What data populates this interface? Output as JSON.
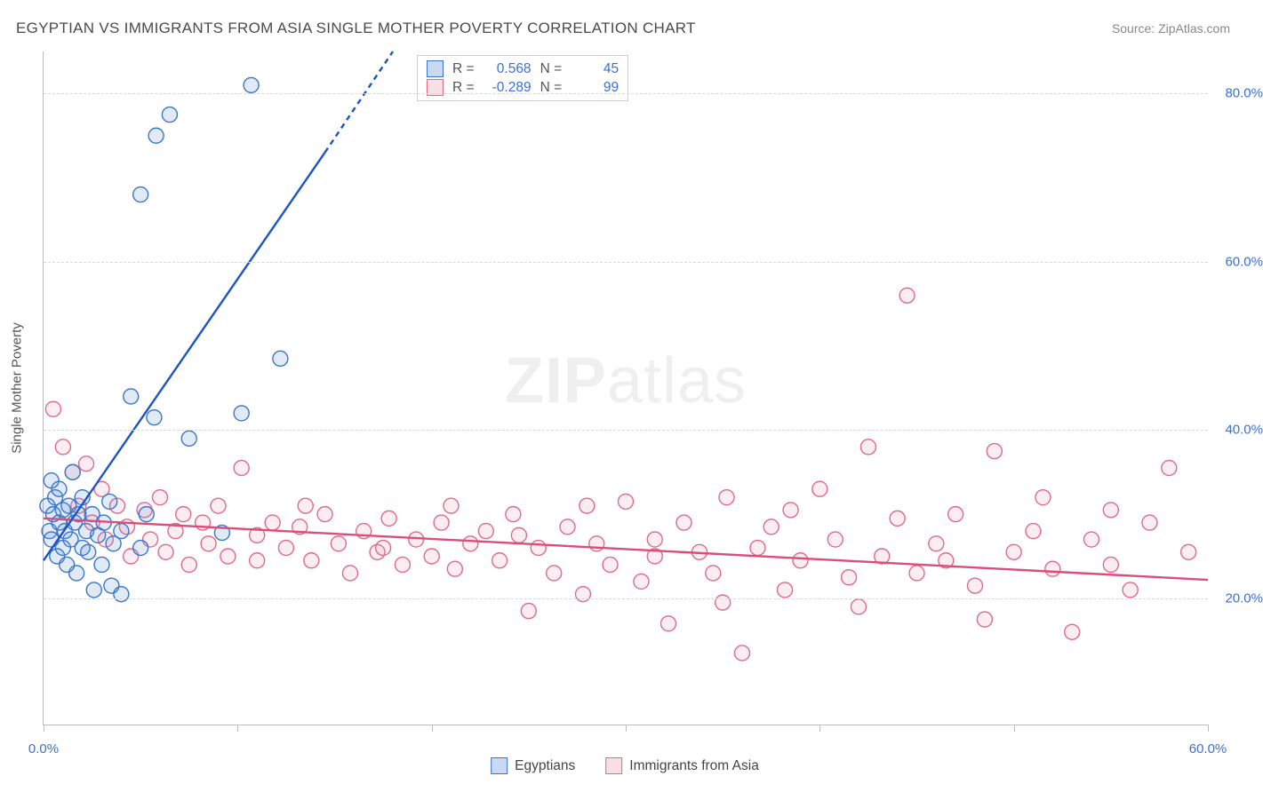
{
  "title": "EGYPTIAN VS IMMIGRANTS FROM ASIA SINGLE MOTHER POVERTY CORRELATION CHART",
  "source": "Source: ZipAtlas.com",
  "y_axis_title": "Single Mother Poverty",
  "watermark": "ZIPatlas",
  "chart": {
    "type": "scatter",
    "background_color": "#ffffff",
    "grid_color": "#d8d8d8",
    "axis_color": "#bcbcbc",
    "tick_label_color": "#3b6fd6",
    "x_range": [
      0,
      60
    ],
    "y_range": [
      5,
      85
    ],
    "x_ticks": [
      0,
      10,
      20,
      30,
      40,
      50,
      60
    ],
    "x_tick_labels": {
      "0": "0.0%",
      "60": "60.0%"
    },
    "y_ticks": [
      20,
      40,
      60,
      80
    ],
    "y_tick_labels": {
      "20": "20.0%",
      "40": "40.0%",
      "60": "60.0%",
      "80": "80.0%"
    },
    "marker_radius": 8.5,
    "marker_stroke_width": 1.4,
    "fill_opacity": 0.18,
    "trend_line_width": 2.4
  },
  "series": {
    "egyptians": {
      "label": "Egyptians",
      "color": "#5a8fd8",
      "stroke": "#3b76c9",
      "line_color": "#1b54c4",
      "R": "0.568",
      "N": "45",
      "trend": {
        "x1": 0,
        "y1": 24.5,
        "x2": 18,
        "y2": 85
      },
      "trend_dashed_ext": {
        "x1": 14.5,
        "y1": 73,
        "x2": 18,
        "y2": 85
      },
      "points": [
        [
          0.2,
          31
        ],
        [
          0.3,
          28
        ],
        [
          0.4,
          34
        ],
        [
          0.4,
          27
        ],
        [
          0.5,
          30
        ],
        [
          0.6,
          32
        ],
        [
          0.7,
          25
        ],
        [
          0.8,
          29
        ],
        [
          0.8,
          33
        ],
        [
          1.0,
          26
        ],
        [
          1.0,
          30.5
        ],
        [
          1.1,
          28
        ],
        [
          1.2,
          24
        ],
        [
          1.3,
          31
        ],
        [
          1.4,
          27
        ],
        [
          1.5,
          35
        ],
        [
          1.6,
          29
        ],
        [
          1.7,
          23
        ],
        [
          1.8,
          30
        ],
        [
          2.0,
          26
        ],
        [
          2.0,
          32
        ],
        [
          2.2,
          28
        ],
        [
          2.3,
          25.5
        ],
        [
          2.5,
          30
        ],
        [
          2.6,
          21
        ],
        [
          2.8,
          27.5
        ],
        [
          3.0,
          24
        ],
        [
          3.1,
          29
        ],
        [
          3.4,
          31.5
        ],
        [
          3.5,
          21.5
        ],
        [
          3.6,
          26.5
        ],
        [
          4.0,
          28
        ],
        [
          4.0,
          20.5
        ],
        [
          4.5,
          44
        ],
        [
          5.0,
          26
        ],
        [
          5.3,
          30
        ],
        [
          5.7,
          41.5
        ],
        [
          5.0,
          68
        ],
        [
          5.8,
          75
        ],
        [
          6.5,
          77.5
        ],
        [
          7.5,
          39
        ],
        [
          10.2,
          42
        ],
        [
          10.7,
          81
        ],
        [
          12.2,
          48.5
        ],
        [
          9.2,
          27.8
        ]
      ]
    },
    "immigrants": {
      "label": "Immigrants from Asia",
      "color": "#eb9bb0",
      "stroke": "#e06a8a",
      "line_color": "#d94f7a",
      "R": "-0.289",
      "N": "99",
      "trend": {
        "x1": 0,
        "y1": 29.5,
        "x2": 60,
        "y2": 22.2
      },
      "points": [
        [
          0.5,
          42.5
        ],
        [
          1.0,
          38
        ],
        [
          1.5,
          35
        ],
        [
          1.8,
          31
        ],
        [
          2.2,
          36
        ],
        [
          2.5,
          29
        ],
        [
          3.0,
          33
        ],
        [
          3.2,
          27
        ],
        [
          3.8,
          31
        ],
        [
          4.3,
          28.5
        ],
        [
          4.5,
          25
        ],
        [
          5.2,
          30.5
        ],
        [
          5.5,
          27
        ],
        [
          6.0,
          32
        ],
        [
          6.3,
          25.5
        ],
        [
          6.8,
          28
        ],
        [
          7.2,
          30
        ],
        [
          7.5,
          24
        ],
        [
          8.2,
          29
        ],
        [
          8.5,
          26.5
        ],
        [
          9.0,
          31
        ],
        [
          9.5,
          25
        ],
        [
          10.2,
          35.5
        ],
        [
          11.0,
          27.5
        ],
        [
          11.0,
          24.5
        ],
        [
          11.8,
          29
        ],
        [
          12.5,
          26
        ],
        [
          13.2,
          28.5
        ],
        [
          13.8,
          24.5
        ],
        [
          14.5,
          30
        ],
        [
          15.2,
          26.5
        ],
        [
          15.8,
          23
        ],
        [
          16.5,
          28
        ],
        [
          17.2,
          25.5
        ],
        [
          17.8,
          29.5
        ],
        [
          18.5,
          24
        ],
        [
          19.2,
          27
        ],
        [
          20.0,
          25
        ],
        [
          20.5,
          29
        ],
        [
          21.2,
          23.5
        ],
        [
          22.0,
          26.5
        ],
        [
          22.8,
          28
        ],
        [
          23.5,
          24.5
        ],
        [
          24.2,
          30
        ],
        [
          25.0,
          18.5
        ],
        [
          25.5,
          26
        ],
        [
          26.3,
          23
        ],
        [
          27.0,
          28.5
        ],
        [
          27.8,
          20.5
        ],
        [
          28.5,
          26.5
        ],
        [
          29.2,
          24
        ],
        [
          30.0,
          31.5
        ],
        [
          30.8,
          22
        ],
        [
          31.5,
          27
        ],
        [
          32.2,
          17
        ],
        [
          33.0,
          29
        ],
        [
          33.8,
          25.5
        ],
        [
          34.5,
          23
        ],
        [
          35.2,
          32
        ],
        [
          36.0,
          13.5
        ],
        [
          36.8,
          26
        ],
        [
          37.5,
          28.5
        ],
        [
          38.2,
          21
        ],
        [
          39.0,
          24.5
        ],
        [
          40.0,
          33
        ],
        [
          40.8,
          27
        ],
        [
          41.5,
          22.5
        ],
        [
          42.5,
          38
        ],
        [
          43.2,
          25
        ],
        [
          44.0,
          29.5
        ],
        [
          45.0,
          23
        ],
        [
          46.0,
          26.5
        ],
        [
          47.0,
          30
        ],
        [
          48.0,
          21.5
        ],
        [
          44.5,
          56
        ],
        [
          49.0,
          37.5
        ],
        [
          50.0,
          25.5
        ],
        [
          51.0,
          28
        ],
        [
          52.0,
          23.5
        ],
        [
          53.0,
          16
        ],
        [
          54.0,
          27
        ],
        [
          55.0,
          24
        ],
        [
          56.0,
          21
        ],
        [
          57.0,
          29
        ],
        [
          58.0,
          35.5
        ],
        [
          59.0,
          25.5
        ],
        [
          55.0,
          30.5
        ],
        [
          51.5,
          32
        ],
        [
          48.5,
          17.5
        ],
        [
          46.5,
          24.5
        ],
        [
          42.0,
          19
        ],
        [
          38.5,
          30.5
        ],
        [
          35.0,
          19.5
        ],
        [
          31.5,
          25
        ],
        [
          28.0,
          31
        ],
        [
          24.5,
          27.5
        ],
        [
          21.0,
          31
        ],
        [
          17.5,
          26
        ],
        [
          13.5,
          31
        ]
      ]
    }
  },
  "stats_box": {
    "R_label": "R =",
    "N_label": "N ="
  }
}
